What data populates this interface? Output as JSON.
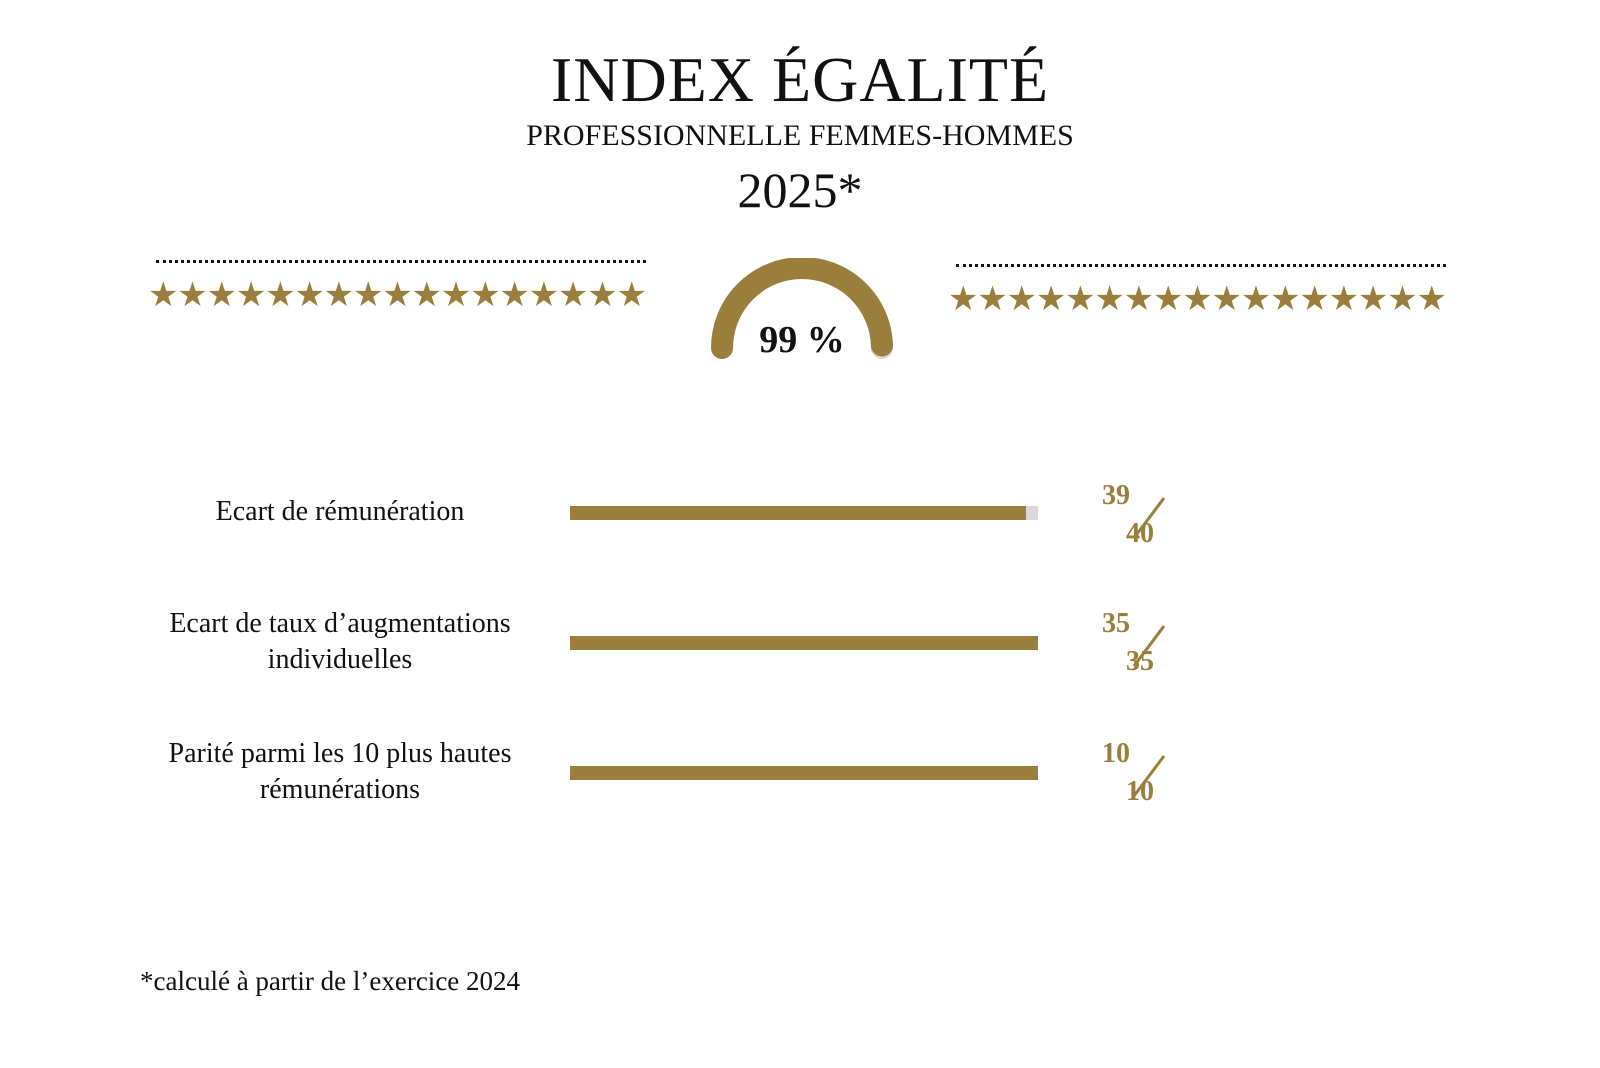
{
  "header": {
    "title": "INDEX ÉGALITÉ",
    "subtitle": "PROFESSIONNELLE FEMMES-HOMMES",
    "year": "2025*"
  },
  "decor": {
    "stars_left": "★★★★★★★★★★★★★★★★★",
    "stars_right": "★★★★★★★★★★★★★★★★★"
  },
  "colors": {
    "accent": "#9a7f3c",
    "track": "#d9d9d9",
    "text": "#111111"
  },
  "chart_data": {
    "type": "bar",
    "gauge": {
      "label": "99 %",
      "value": 99,
      "max": 100
    },
    "categories": [
      "Ecart de rémunération",
      "Ecart de taux d’augmentations individuelles",
      "Parité parmi les 10 plus hautes rémunérations"
    ],
    "series": [
      {
        "values": [
          39,
          35,
          10
        ]
      }
    ],
    "max_values": [
      40,
      35,
      10
    ],
    "score_labels": [
      {
        "num": "39",
        "den": "40"
      },
      {
        "num": "35",
        "den": "35"
      },
      {
        "num": "10",
        "den": "10"
      }
    ]
  },
  "footnote": "*calculé à partir de l’exercice 2024"
}
